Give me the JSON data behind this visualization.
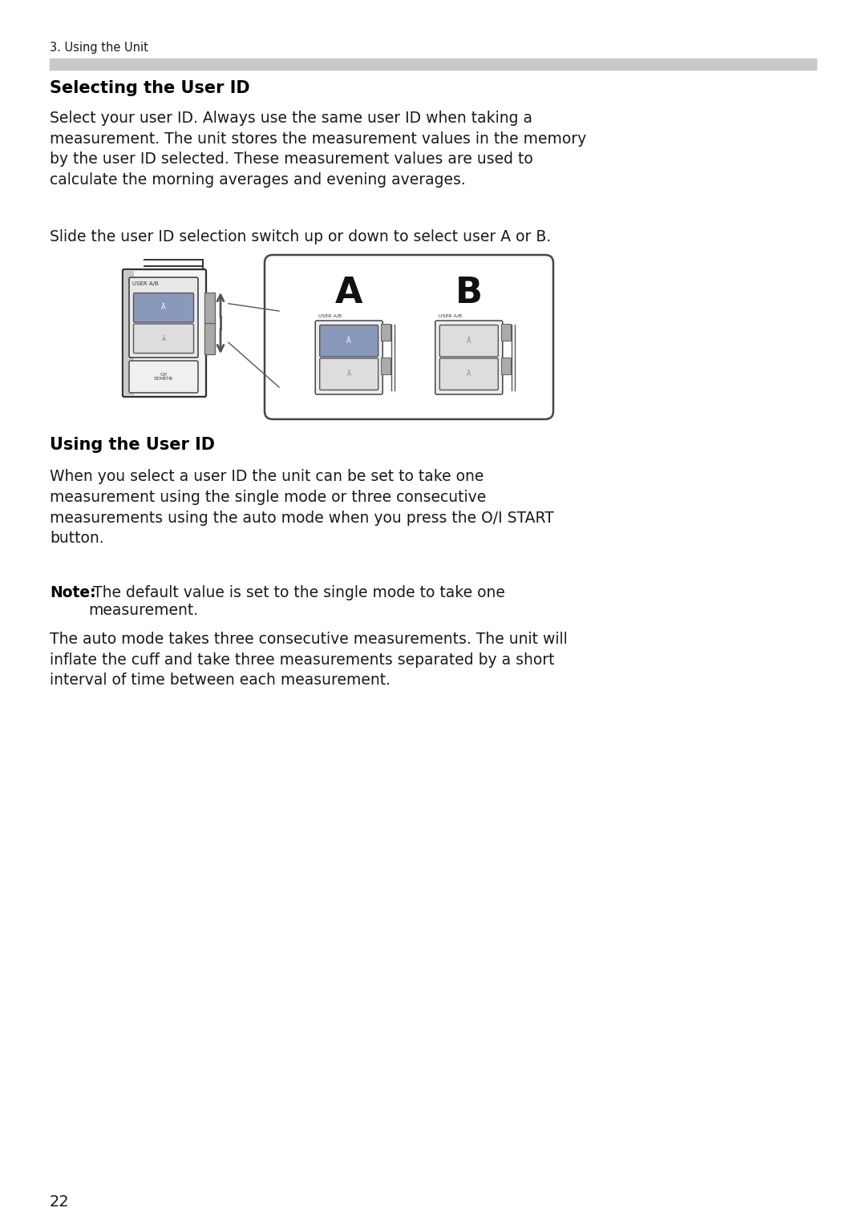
{
  "page_number": "22",
  "header_text": "3. Using the Unit",
  "section1_title": "Selecting the User ID",
  "section1_para1": "Select your user ID. Always use the same user ID when taking a\nmeasurement. The unit stores the measurement values in the memory\nby the user ID selected. These measurement values are used to\ncalculate the morning averages and evening averages.",
  "section1_para2": "Slide the user ID selection switch up or down to select user A or B.",
  "section2_title": "Using the User ID",
  "section2_para1": "When you select a user ID the unit can be set to take one\nmeasurement using the single mode or three consecutive\nmeasurements using the auto mode when you press the O/I START\nbutton.",
  "note_bold": "Note:",
  "note_rest": " The default value is set to the single mode to take one",
  "note_line2": "        measurement.",
  "section2_para2": "The auto mode takes three consecutive measurements. The unit will\ninflate the cuff and take three measurements separated by a short\ninterval of time between each measurement.",
  "bg_color": "#ffffff",
  "text_color": "#1a1a1a",
  "header_bar_color": "#c8c8c8",
  "title_fontsize": 15,
  "body_fontsize": 13.5,
  "note_fontsize": 13.5,
  "header_fontsize": 10.5,
  "page_num_fontsize": 14
}
